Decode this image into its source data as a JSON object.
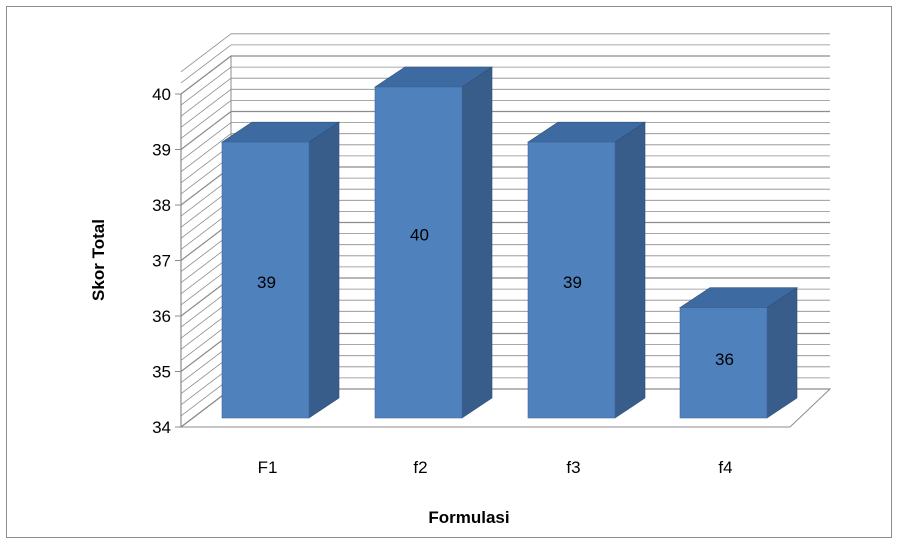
{
  "chart_data": {
    "type": "bar",
    "style": "3d-column",
    "title": "",
    "xlabel": "Formulasi",
    "ylabel": "Skor Total",
    "categories": [
      "F1",
      "f2",
      "f3",
      "f4"
    ],
    "values": [
      39,
      40,
      39,
      36
    ],
    "data_labels": [
      "39",
      "40",
      "39",
      "36"
    ],
    "ylim": [
      34,
      40
    ],
    "yticks": [
      "34",
      "35",
      "36",
      "37",
      "38",
      "39",
      "40"
    ],
    "grid": true,
    "legend": "none",
    "colors": {
      "bar_front": "#4f81bd",
      "bar_side": "#385d8a",
      "bar_top": "#3d6aa0",
      "gridline": "#8c8c8c"
    }
  }
}
